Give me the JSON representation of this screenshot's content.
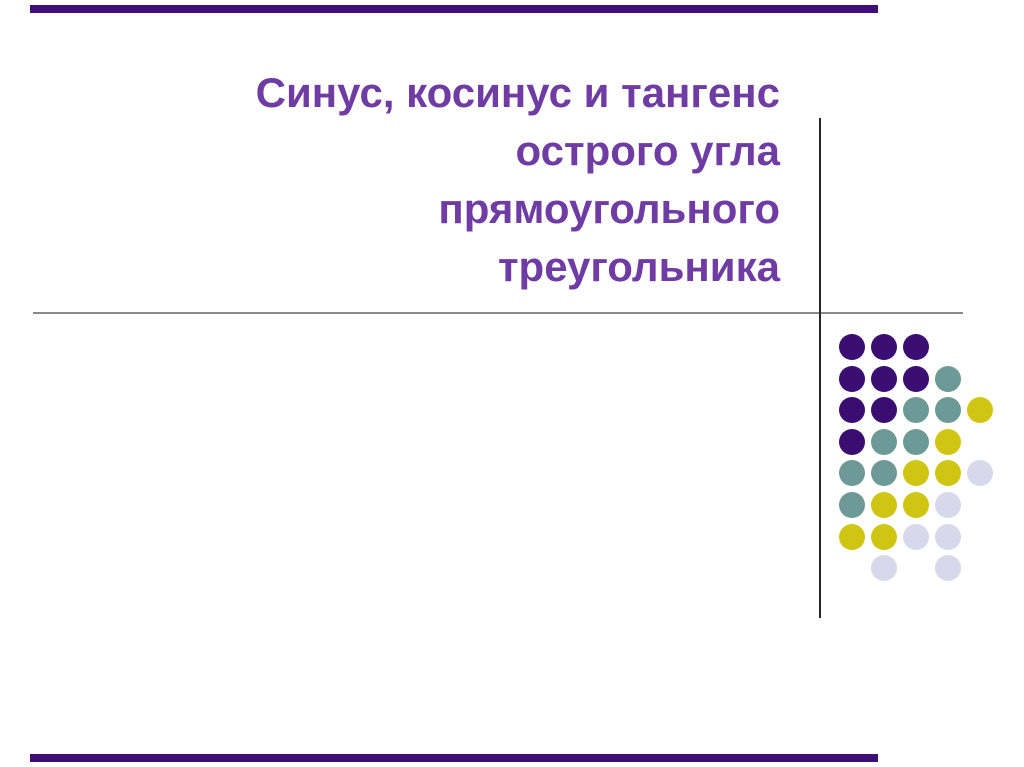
{
  "slide": {
    "title_lines": [
      "Синус, косинус и тангенс",
      "острого угла",
      "прямоугольного",
      "треугольника"
    ]
  },
  "theme": {
    "background": "#ffffff",
    "title_color": "#6e3ca3",
    "accent_bar_color": "#3f0f77",
    "horizontal_rule_color": "#8a8a8a",
    "vertical_rule_color": "#262626"
  },
  "decoration": {
    "name": "dots-grid",
    "colors": {
      "purple": "#3a0d72",
      "teal": "#6d9a96",
      "yellow": "#cfc614",
      "lavender": "#d8d8ea"
    },
    "pattern": [
      [
        "purple",
        "purple",
        "purple",
        null,
        null
      ],
      [
        "purple",
        "purple",
        "purple",
        "teal",
        null
      ],
      [
        "purple",
        "purple",
        "teal",
        "teal",
        "yellow"
      ],
      [
        "purple",
        "teal",
        "teal",
        "yellow",
        null
      ],
      [
        "teal",
        "teal",
        "yellow",
        "yellow",
        "lavender"
      ],
      [
        "teal",
        "yellow",
        "yellow",
        "lavender",
        null
      ],
      [
        "yellow",
        "yellow",
        "lavender",
        "lavender",
        null
      ],
      [
        null,
        "lavender",
        null,
        "lavender",
        null
      ]
    ]
  }
}
